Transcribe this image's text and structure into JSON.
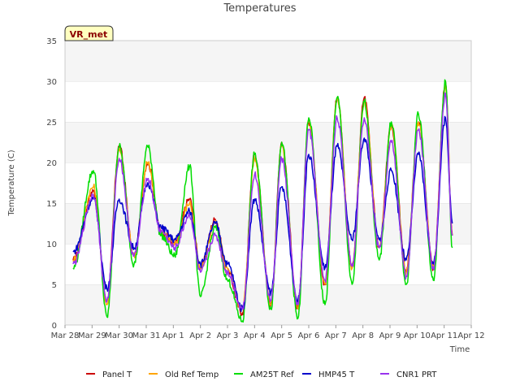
{
  "chart_data": {
    "type": "line",
    "title": "Temperatures",
    "xlabel": "Time",
    "ylabel": "Temperature (C)",
    "ylim": [
      0,
      35
    ],
    "yticks": [
      0,
      5,
      10,
      15,
      20,
      25,
      30,
      35
    ],
    "xlim": [
      0,
      15
    ],
    "xticks": [
      "Mar 28",
      "Mar 29",
      "Mar 30",
      "Mar 31",
      "Apr 1",
      "Apr 2",
      "Apr 3",
      "Apr 4",
      "Apr 5",
      "Apr 6",
      "Apr 7",
      "Apr 8",
      "Apr 9",
      "Apr 10",
      "Apr 11",
      "Apr 12"
    ],
    "station_badge": "VR_met",
    "grid": "horizontal bands",
    "legend_position": "bottom",
    "series": [
      {
        "name": "Panel T",
        "color": "#cc0000"
      },
      {
        "name": "Old Ref Temp",
        "color": "#ffa500"
      },
      {
        "name": "AM25T Ref",
        "color": "#00dd00"
      },
      {
        "name": "HMP45 T",
        "color": "#0000cc"
      },
      {
        "name": "CNR1 PRT",
        "color": "#9933ee"
      }
    ],
    "daily_extremes": {
      "day_offsets": [
        0.3,
        1.05,
        1.55,
        2.0,
        2.55,
        3.05,
        3.55,
        4.05,
        4.6,
        5.0,
        5.55,
        6.0,
        6.55,
        7.0,
        7.6,
        8.0,
        8.6,
        9.0,
        9.6,
        10.05,
        10.6,
        11.05,
        11.6,
        12.05,
        12.6,
        13.05,
        13.6,
        14.05,
        14.3
      ],
      "Panel T": [
        8,
        16.5,
        3,
        22,
        8.5,
        20,
        11.5,
        10,
        15.5,
        7,
        13,
        6.5,
        1.5,
        21,
        2.5,
        22.5,
        2,
        25,
        5,
        28,
        7,
        28,
        9.5,
        24.5,
        6.5,
        25,
        7,
        30,
        11
      ],
      "Old Ref Temp": [
        8,
        17,
        2.5,
        21.5,
        8.5,
        20,
        11.5,
        10,
        15,
        7,
        12.5,
        7,
        2,
        20.5,
        2.5,
        22,
        2,
        25,
        5,
        28,
        7,
        27.5,
        9.5,
        24.5,
        6.5,
        25,
        7,
        29.5,
        11
      ],
      "AM25T Ref": [
        7,
        19,
        1,
        22,
        7.5,
        22,
        11,
        8.5,
        19.5,
        3.5,
        12,
        5.5,
        0.5,
        21,
        2,
        22.5,
        0.8,
        25.5,
        2.5,
        28,
        5,
        27.5,
        8,
        25,
        5,
        26,
        5.5,
        30,
        9.5
      ],
      "HMP45 T": [
        9,
        15.5,
        4.5,
        15.5,
        9.5,
        17.5,
        12,
        10.5,
        14,
        7.5,
        12.5,
        7.5,
        2,
        15.5,
        4,
        17,
        3,
        21,
        7,
        22,
        10.5,
        23,
        10.5,
        19,
        8,
        21,
        7.5,
        25.5,
        12.5
      ],
      "CNR1 PRT": [
        7.5,
        16,
        3,
        20.5,
        8.5,
        18,
        11.5,
        9.5,
        13.5,
        6.5,
        11,
        6.5,
        2,
        18.5,
        3,
        20.5,
        2.5,
        24,
        5.5,
        25.5,
        7.5,
        25.5,
        9.5,
        22.5,
        6,
        24,
        7,
        28.5,
        11
      ]
    }
  }
}
